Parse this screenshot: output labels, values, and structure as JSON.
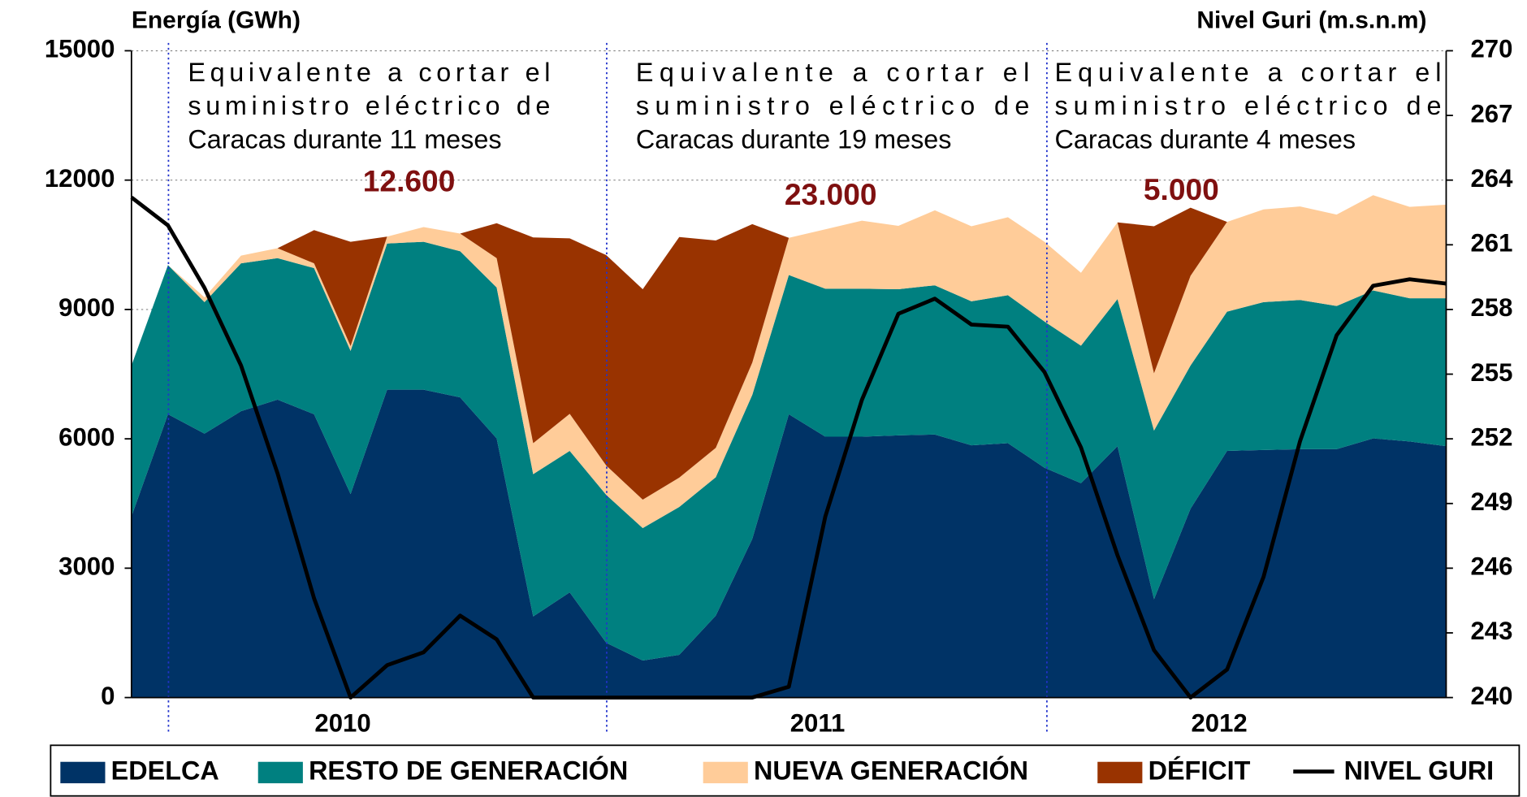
{
  "chart_data": {
    "type": "area",
    "ylabel": "Energía (GWh)",
    "y2label": "Nivel Guri (m.s.n.m)",
    "categories": [
      null,
      null,
      null,
      null,
      null,
      null,
      "2010",
      null,
      null,
      null,
      null,
      null,
      null,
      null,
      null,
      null,
      null,
      null,
      null,
      "2011",
      null,
      null,
      null,
      null,
      null,
      null,
      null,
      null,
      null,
      null,
      "2012",
      null,
      null,
      null,
      null,
      null,
      null
    ],
    "ylim": [
      0,
      15000
    ],
    "yticks": [
      0,
      3000,
      6000,
      9000,
      12000,
      15000
    ],
    "y2lim": [
      240,
      270
    ],
    "y2ticks": [
      240,
      243,
      246,
      249,
      252,
      255,
      258,
      261,
      264,
      267,
      270
    ],
    "grid": true,
    "legend": "bottom",
    "series": [
      {
        "name": "EDELCA",
        "color": "#003366",
        "values": [
          4200,
          6570,
          6120,
          6640,
          6910,
          6570,
          4720,
          7140,
          7140,
          6960,
          6010,
          1880,
          2440,
          1270,
          860,
          990,
          1900,
          3680,
          6570,
          6050,
          6050,
          6080,
          6100,
          5850,
          5900,
          5330,
          4970,
          5830,
          2280,
          4380,
          5720,
          5740,
          5760,
          5760,
          6010,
          5940,
          5830
        ]
      },
      {
        "name": "RESTO DE GENERACIÓN",
        "color": "#008080",
        "values": [
          3500,
          3460,
          3050,
          3430,
          3280,
          3390,
          3320,
          3390,
          3430,
          3390,
          3500,
          3300,
          3280,
          3430,
          3070,
          3430,
          3210,
          3340,
          3230,
          3430,
          3430,
          3390,
          3460,
          3340,
          3430,
          3390,
          3190,
          3410,
          3910,
          3320,
          3230,
          3430,
          3460,
          3320,
          3430,
          3320,
          3430
        ]
      },
      {
        "name": "NUEVA GENERACIÓN",
        "color": "#FFCC99",
        "values": [
          0,
          0,
          110,
          180,
          230,
          110,
          110,
          160,
          340,
          410,
          680,
          720,
          860,
          680,
          660,
          680,
          680,
          750,
          860,
          1380,
          1580,
          1470,
          1740,
          1740,
          1810,
          1850,
          1690,
          1780,
          1330,
          2080,
          2080,
          2150,
          2170,
          2120,
          2210,
          2120,
          2170
        ]
      },
      {
        "name": "DÉFICIT",
        "color": "#993300",
        "values": [
          0,
          0,
          0,
          0,
          0,
          770,
          2420,
          0,
          0,
          0,
          810,
          4770,
          4070,
          4880,
          4880,
          5580,
          4810,
          3210,
          0,
          0,
          0,
          0,
          0,
          0,
          0,
          0,
          0,
          0,
          3410,
          1580,
          0,
          0,
          0,
          0,
          0,
          0,
          0
        ]
      },
      {
        "name": "NIVEL GURI",
        "color": "#000000",
        "axis": "y2",
        "type": "line",
        "values": [
          263.2,
          261.9,
          259.0,
          255.4,
          250.4,
          244.6,
          240.0,
          241.5,
          242.1,
          243.8,
          242.7,
          240.0,
          240.0,
          240.0,
          240.0,
          240.0,
          240.0,
          240.0,
          240.5,
          248.4,
          253.8,
          257.8,
          258.5,
          257.3,
          257.2,
          255.1,
          251.6,
          246.6,
          242.2,
          240.0,
          241.3,
          245.6,
          251.9,
          256.8,
          259.1,
          259.4,
          259.2
        ]
      }
    ],
    "annotations": [
      {
        "lines": [
          "Equivalente a cortar el",
          "suministro eléctrico de",
          "Caracas durante 11 meses"
        ],
        "label": "12.600"
      },
      {
        "lines": [
          "Equivalente a cortar el",
          "suministro eléctrico de",
          "Caracas durante 19 meses"
        ],
        "label": "23.000"
      },
      {
        "lines": [
          "Equivalente a cortar el",
          "suministro eléctrico de",
          "Caracas durante 4 meses"
        ],
        "label": "5.000"
      }
    ]
  }
}
